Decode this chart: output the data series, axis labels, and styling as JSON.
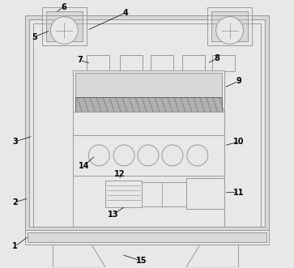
{
  "fig_width": 3.63,
  "fig_height": 3.31,
  "dpi": 100,
  "bg_color": "#e8e8e8",
  "line_color": "#999999",
  "dark_color": "#666666",
  "gray_fill": "#b0b0b0",
  "white_fill": "#e8e8e8",
  "inner_bg": "#d8d8d8",
  "lw": 0.7
}
